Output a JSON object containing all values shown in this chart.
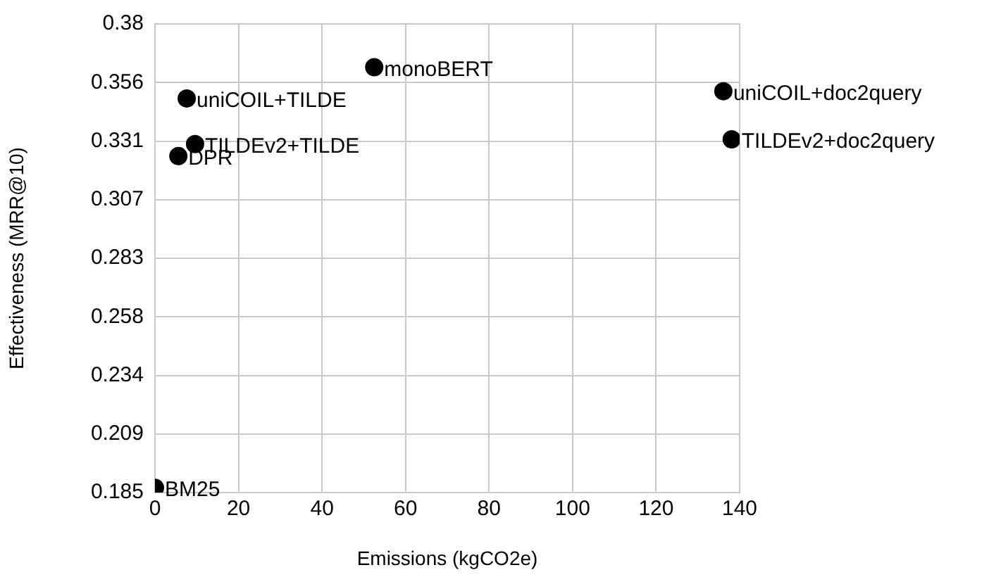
{
  "chart_data": {
    "type": "scatter",
    "xlabel": "Emissions (kgCO2e)",
    "ylabel": "Effectiveness (MRR@10)",
    "xlim": [
      0,
      140
    ],
    "xticks": [
      0,
      20,
      40,
      60,
      80,
      100,
      120,
      140
    ],
    "ylim": [
      0.185,
      0.38
    ],
    "yticks": [
      {
        "value": 0.185,
        "label": "0.185"
      },
      {
        "value": 0.209375,
        "label": "0.209"
      },
      {
        "value": 0.23375,
        "label": "0.234"
      },
      {
        "value": 0.258125,
        "label": "0.258"
      },
      {
        "value": 0.2825,
        "label": "0.283"
      },
      {
        "value": 0.306875,
        "label": "0.307"
      },
      {
        "value": 0.33125,
        "label": "0.331"
      },
      {
        "value": 0.355625,
        "label": "0.356"
      },
      {
        "value": 0.38,
        "label": "0.38"
      }
    ],
    "grid": true,
    "legend": false,
    "marker": "circle",
    "series": [
      {
        "name": "BM25",
        "color": "#000000",
        "x": [
          0
        ],
        "values": [
          0.187
        ]
      },
      {
        "name": "DPR",
        "color": "#000000",
        "x": [
          5.6
        ],
        "values": [
          0.325
        ]
      },
      {
        "name": "TILDEv2+TILDE",
        "color": "#000000",
        "x": [
          9.6
        ],
        "values": [
          0.33
        ]
      },
      {
        "name": "uniCOIL+TILDE",
        "color": "#000000",
        "x": [
          7.6
        ],
        "values": [
          0.349
        ]
      },
      {
        "name": "monoBERT",
        "color": "#000000",
        "x": [
          52.5
        ],
        "values": [
          0.362
        ]
      },
      {
        "name": "uniCOIL+doc2query",
        "color": "#000000",
        "x": [
          136.1
        ],
        "values": [
          0.352
        ]
      },
      {
        "name": "TILDEv2+doc2query",
        "color": "#000000",
        "x": [
          138.1
        ],
        "values": [
          0.332
        ]
      }
    ]
  }
}
